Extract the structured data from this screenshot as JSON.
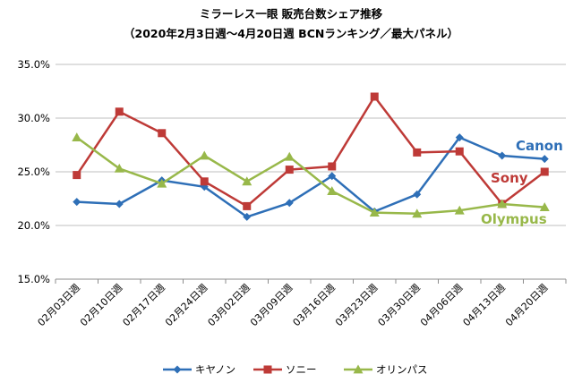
{
  "chart_data": {
    "type": "line",
    "title": "ミラーレス一眼 販売台数シェア推移",
    "subtitle": "（2020年2月3日週〜4月20日週 BCNランキング／最大パネル）",
    "xlabel": "",
    "ylabel": "",
    "ylim": [
      15.0,
      35.0
    ],
    "ytick_values": [
      15.0,
      20.0,
      25.0,
      30.0,
      35.0
    ],
    "ytick_labels": [
      "15.0%",
      "20.0%",
      "25.0%",
      "30.0%",
      "35.0%"
    ],
    "grid": true,
    "legend_position": "bottom",
    "categories": [
      "02月03日週",
      "02月10日週",
      "02月17日週",
      "02月24日週",
      "03月02日週",
      "03月09日週",
      "03月16日週",
      "03月23日週",
      "03月30日週",
      "04月06日週",
      "04月13日週",
      "04月20日週"
    ],
    "series": [
      {
        "name": "キヤノン",
        "color": "#2e6fb7",
        "marker": "diamond",
        "values": [
          22.2,
          22.0,
          24.2,
          23.6,
          20.8,
          22.1,
          24.6,
          21.3,
          22.9,
          28.2,
          26.5,
          26.2
        ]
      },
      {
        "name": "ソニー",
        "color": "#be3a37",
        "marker": "square",
        "values": [
          24.7,
          30.6,
          28.6,
          24.1,
          21.8,
          25.2,
          25.5,
          32.0,
          26.8,
          26.9,
          22.0,
          25.0
        ]
      },
      {
        "name": "オリンパス",
        "color": "#98b84a",
        "marker": "triangle",
        "values": [
          28.2,
          25.3,
          23.9,
          26.5,
          24.1,
          26.4,
          23.2,
          21.2,
          21.1,
          21.4,
          22.0,
          21.7
        ]
      }
    ],
    "annotations": [
      {
        "text": "Canon",
        "color": "#2e6fb7"
      },
      {
        "text": "Sony",
        "color": "#be3a37"
      },
      {
        "text": "Olympus",
        "color": "#98b84a"
      }
    ]
  }
}
